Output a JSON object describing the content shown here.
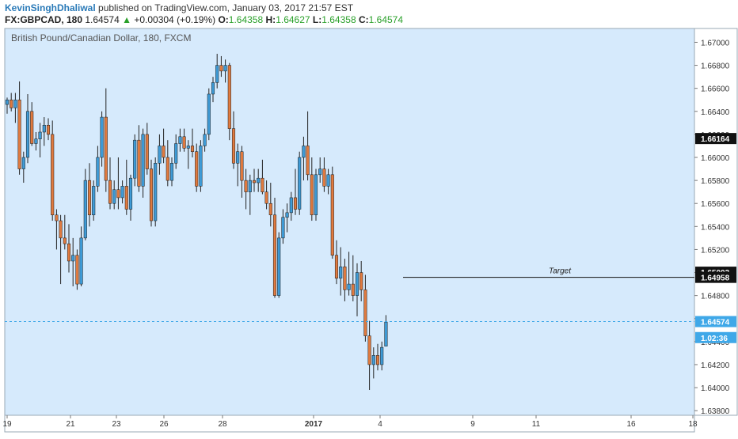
{
  "header": {
    "author": "KevinSinghDhaliwal",
    "published_text": "published on TradingView.com, January 03, 2017 21:57 EST",
    "symbol": "FX:GBPCAD, 180",
    "last": "1.64574",
    "change_arrow": "▲",
    "change": "+0.00304 (+0.19%)",
    "o_label": "O:",
    "o_value": "1.64358",
    "h_label": "H:",
    "h_value": "1.64627",
    "l_label": "L:",
    "l_value": "1.64358",
    "c_label": "C:",
    "c_value": "1.64574"
  },
  "colors": {
    "background": "#d6eafc",
    "up": "#3f9bd6",
    "down": "#e07a3f",
    "wick": "#222222",
    "price_line": "#3fa8e8",
    "grid_border": "#9aa8b4"
  },
  "chart_data": {
    "type": "candlestick",
    "title": "British Pound/Canadian Dollar, 180, FXCM",
    "ylim": [
      1.6376,
      1.6712
    ],
    "y_ticks": [
      "1.67000",
      "1.66800",
      "1.66600",
      "1.66400",
      "1.66200",
      "1.66000",
      "1.65800",
      "1.65600",
      "1.65400",
      "1.65200",
      "1.65000",
      "1.64800",
      "1.64600",
      "1.64400",
      "1.64200",
      "1.64000",
      "1.63800"
    ],
    "x_ticks": [
      "19",
      "21",
      "23",
      "26",
      "28",
      "2017",
      "4",
      "9",
      "11",
      "16",
      "18"
    ],
    "bold_x_ticks": [
      "2017"
    ],
    "scale_labels": [
      {
        "text": "1.66164",
        "value": 1.66164,
        "style": "dark"
      },
      {
        "text": "1.65003",
        "value": 1.65003,
        "style": "dark"
      },
      {
        "text": "1.64958",
        "value": 1.64958,
        "style": "dark"
      },
      {
        "text": "1.64574",
        "value": 1.64574,
        "style": "blue"
      },
      {
        "text": "1.02:36",
        "value": 1.64435,
        "style": "blue"
      }
    ],
    "last_price": 1.64574,
    "annotations": [
      {
        "text": "Target",
        "value": 1.64958,
        "type": "horizontal_line"
      }
    ],
    "candles": [
      [
        1.6646,
        1.6652,
        1.6638,
        1.665
      ],
      [
        1.665,
        1.6656,
        1.664,
        1.6643
      ],
      [
        1.6643,
        1.6656,
        1.663,
        1.665
      ],
      [
        1.665,
        1.6666,
        1.6585,
        1.659
      ],
      [
        1.659,
        1.6605,
        1.6578,
        1.66
      ],
      [
        1.66,
        1.6655,
        1.6595,
        1.664
      ],
      [
        1.664,
        1.6648,
        1.661,
        1.6612
      ],
      [
        1.6612,
        1.6622,
        1.6606,
        1.6616
      ],
      [
        1.6616,
        1.663,
        1.66,
        1.6622
      ],
      [
        1.6622,
        1.6635,
        1.661,
        1.6628
      ],
      [
        1.6628,
        1.6634,
        1.6615,
        1.662
      ],
      [
        1.662,
        1.6632,
        1.6545,
        1.655
      ],
      [
        1.655,
        1.6555,
        1.652,
        1.6545
      ],
      [
        1.6545,
        1.655,
        1.649,
        1.653
      ],
      [
        1.653,
        1.655,
        1.652,
        1.6525
      ],
      [
        1.6525,
        1.6542,
        1.65,
        1.651
      ],
      [
        1.651,
        1.653,
        1.6488,
        1.6515
      ],
      [
        1.6515,
        1.652,
        1.6485,
        1.649
      ],
      [
        1.649,
        1.654,
        1.6488,
        1.653
      ],
      [
        1.653,
        1.659,
        1.6528,
        1.658
      ],
      [
        1.658,
        1.6595,
        1.654,
        1.655
      ],
      [
        1.655,
        1.658,
        1.6545,
        1.6575
      ],
      [
        1.6575,
        1.661,
        1.657,
        1.66
      ],
      [
        1.66,
        1.664,
        1.6592,
        1.6635
      ],
      [
        1.6635,
        1.666,
        1.657,
        1.658
      ],
      [
        1.658,
        1.66,
        1.6555,
        1.656
      ],
      [
        1.656,
        1.658,
        1.6555,
        1.6572
      ],
      [
        1.6572,
        1.66,
        1.6555,
        1.6565
      ],
      [
        1.6565,
        1.658,
        1.656,
        1.6575
      ],
      [
        1.6575,
        1.6598,
        1.655,
        1.6555
      ],
      [
        1.6555,
        1.6585,
        1.6545,
        1.6582
      ],
      [
        1.6582,
        1.662,
        1.6575,
        1.6615
      ],
      [
        1.6615,
        1.6628,
        1.657,
        1.6575
      ],
      [
        1.6575,
        1.6625,
        1.6565,
        1.662
      ],
      [
        1.662,
        1.663,
        1.6585,
        1.659
      ],
      [
        1.659,
        1.6598,
        1.654,
        1.6545
      ],
      [
        1.6545,
        1.66,
        1.654,
        1.6595
      ],
      [
        1.6595,
        1.662,
        1.6585,
        1.661
      ],
      [
        1.661,
        1.6625,
        1.6595,
        1.66
      ],
      [
        1.66,
        1.6615,
        1.6575,
        1.658
      ],
      [
        1.658,
        1.66,
        1.6575,
        1.6595
      ],
      [
        1.6595,
        1.662,
        1.659,
        1.6612
      ],
      [
        1.6612,
        1.6625,
        1.6605,
        1.6618
      ],
      [
        1.6618,
        1.6625,
        1.6605,
        1.6608
      ],
      [
        1.6608,
        1.6615,
        1.659,
        1.661
      ],
      [
        1.661,
        1.6625,
        1.66,
        1.6605
      ],
      [
        1.6605,
        1.6612,
        1.657,
        1.6575
      ],
      [
        1.6575,
        1.6615,
        1.657,
        1.661
      ],
      [
        1.661,
        1.6625,
        1.6605,
        1.662
      ],
      [
        1.662,
        1.666,
        1.6615,
        1.6655
      ],
      [
        1.6655,
        1.667,
        1.6648,
        1.6665
      ],
      [
        1.6665,
        1.669,
        1.666,
        1.668
      ],
      [
        1.668,
        1.6688,
        1.667,
        1.6675
      ],
      [
        1.6675,
        1.6685,
        1.6665,
        1.668
      ],
      [
        1.668,
        1.6682,
        1.6615,
        1.6625
      ],
      [
        1.6625,
        1.664,
        1.659,
        1.6595
      ],
      [
        1.6595,
        1.6612,
        1.6575,
        1.6605
      ],
      [
        1.6605,
        1.661,
        1.6565,
        1.658
      ],
      [
        1.658,
        1.659,
        1.6555,
        1.657
      ],
      [
        1.657,
        1.6585,
        1.655,
        1.658
      ],
      [
        1.658,
        1.659,
        1.657,
        1.6578
      ],
      [
        1.6578,
        1.659,
        1.657,
        1.6582
      ],
      [
        1.6582,
        1.6598,
        1.6568,
        1.657
      ],
      [
        1.657,
        1.658,
        1.6555,
        1.656
      ],
      [
        1.656,
        1.6578,
        1.654,
        1.655
      ],
      [
        1.655,
        1.6565,
        1.6478,
        1.648
      ],
      [
        1.648,
        1.6535,
        1.6478,
        1.653
      ],
      [
        1.653,
        1.6555,
        1.6525,
        1.6548
      ],
      [
        1.6548,
        1.656,
        1.6535,
        1.6552
      ],
      [
        1.6552,
        1.657,
        1.6545,
        1.6565
      ],
      [
        1.6565,
        1.659,
        1.655,
        1.6555
      ],
      [
        1.6555,
        1.6605,
        1.655,
        1.66
      ],
      [
        1.66,
        1.6618,
        1.658,
        1.661
      ],
      [
        1.661,
        1.664,
        1.658,
        1.6585
      ],
      [
        1.6585,
        1.66,
        1.6545,
        1.655
      ],
      [
        1.655,
        1.659,
        1.6545,
        1.6585
      ],
      [
        1.6585,
        1.66,
        1.6578,
        1.659
      ],
      [
        1.659,
        1.66,
        1.657,
        1.6575
      ],
      [
        1.6575,
        1.659,
        1.6568,
        1.6585
      ],
      [
        1.6585,
        1.6592,
        1.6512,
        1.6515
      ],
      [
        1.6515,
        1.6528,
        1.649,
        1.6495
      ],
      [
        1.6495,
        1.6522,
        1.648,
        1.6505
      ],
      [
        1.6505,
        1.6512,
        1.6475,
        1.6485
      ],
      [
        1.6485,
        1.6518,
        1.648,
        1.649
      ],
      [
        1.649,
        1.6515,
        1.6475,
        1.648
      ],
      [
        1.648,
        1.6508,
        1.6462,
        1.65
      ],
      [
        1.65,
        1.651,
        1.6475,
        1.6485
      ],
      [
        1.6485,
        1.6498,
        1.644,
        1.6445
      ],
      [
        1.6445,
        1.6458,
        1.6398,
        1.642
      ],
      [
        1.642,
        1.6435,
        1.6408,
        1.6428
      ],
      [
        1.6428,
        1.6438,
        1.6415,
        1.642
      ],
      [
        1.642,
        1.644,
        1.6415,
        1.6435
      ],
      [
        1.6436,
        1.6463,
        1.6436,
        1.6457
      ]
    ]
  }
}
